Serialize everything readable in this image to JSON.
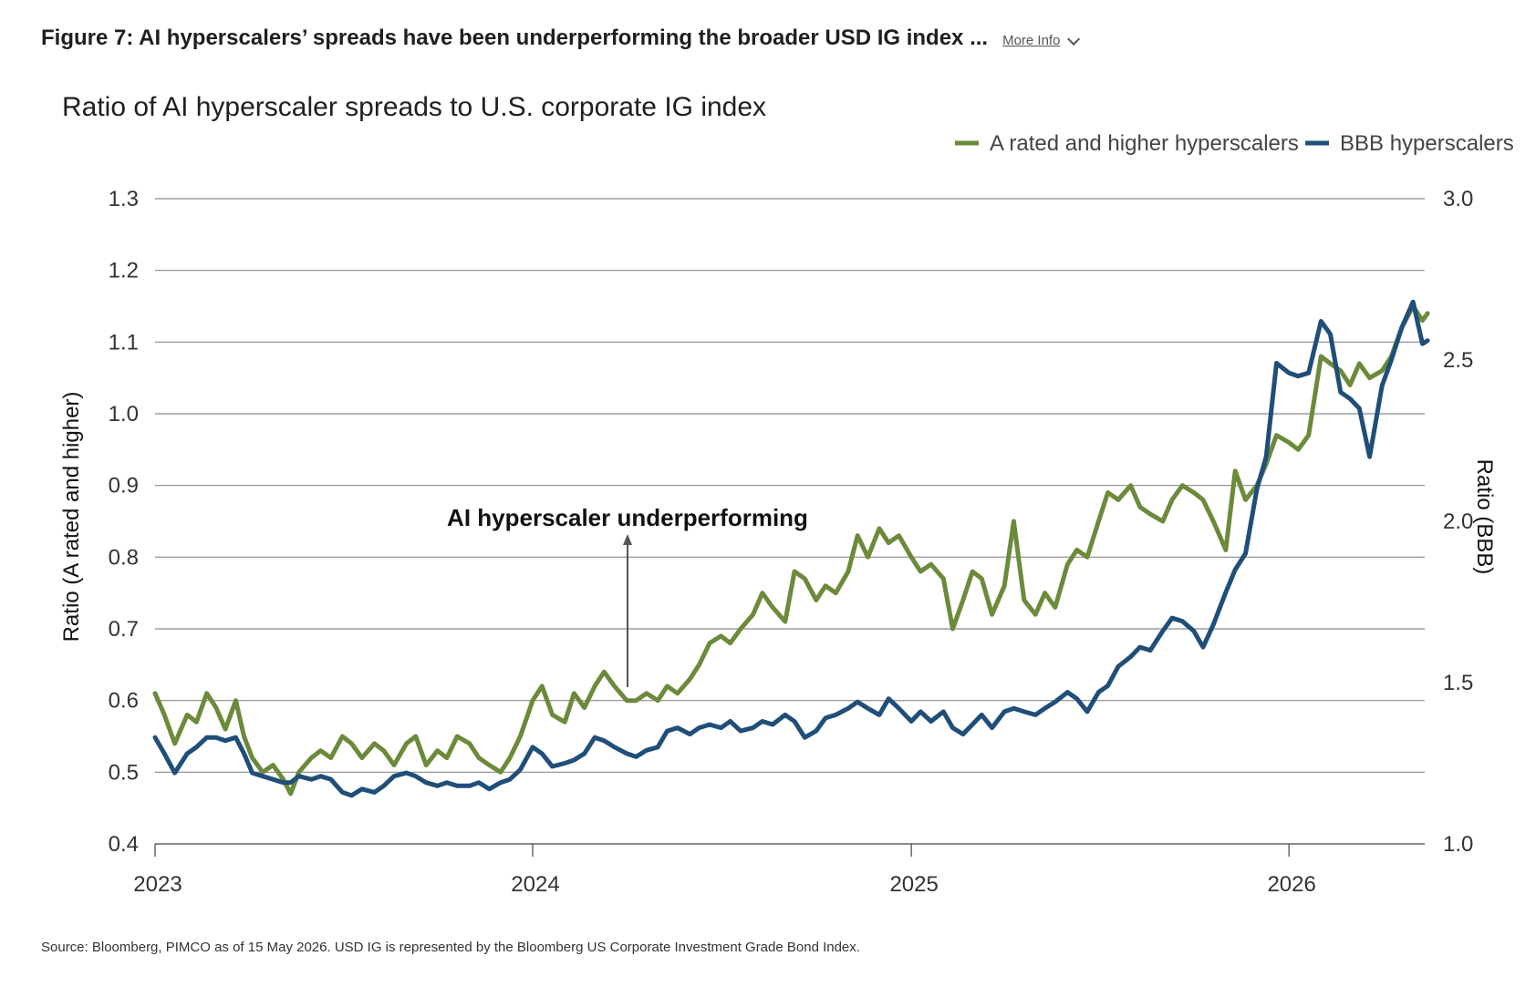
{
  "header": {
    "title": "Figure 7: AI hyperscalers’ spreads have been underperforming the broader USD IG index ...",
    "more_info_label": "More Info"
  },
  "source": "Source: Bloomberg, PIMCO as of 15 May 2026. USD IG is represented by the Bloomberg US Corporate Investment Grade Bond Index.",
  "chart_data": {
    "type": "line",
    "title": "Ratio of AI hyperscaler spreads to U.S. corporate IG index",
    "ylabel": "Ratio (A rated and higher)",
    "y2label": "Ratio (BBB)",
    "ylim": [
      0.4,
      1.3
    ],
    "y2lim": [
      1.0,
      3.0
    ],
    "xlim": [
      "2023-01-01",
      "2026-05-15"
    ],
    "yticks": [
      "1.3",
      "1.2",
      "1.1",
      "1.0",
      "0.9",
      "0.8",
      "0.7",
      "0.6",
      "0.5",
      "0.4"
    ],
    "y2ticks": [
      "3.0",
      "2.5",
      "2.0",
      "1.5",
      "1.0"
    ],
    "xticks": [
      "2023",
      "2024",
      "2025",
      "2026"
    ],
    "grid": "horizontal",
    "legend_position": "top-right",
    "annotation": "AI hyperscaler underperforming",
    "series": [
      {
        "name": "A rated and higher hyperscalers",
        "axis": "left",
        "color": "#6b8a3a",
        "points": [
          [
            "2023-01-01",
            0.61
          ],
          [
            "2023-01-10",
            0.58
          ],
          [
            "2023-01-20",
            0.54
          ],
          [
            "2023-02-01",
            0.58
          ],
          [
            "2023-02-10",
            0.57
          ],
          [
            "2023-02-20",
            0.61
          ],
          [
            "2023-03-01",
            0.59
          ],
          [
            "2023-03-10",
            0.56
          ],
          [
            "2023-03-20",
            0.6
          ],
          [
            "2023-03-28",
            0.55
          ],
          [
            "2023-04-05",
            0.52
          ],
          [
            "2023-04-15",
            0.5
          ],
          [
            "2023-04-25",
            0.51
          ],
          [
            "2023-05-05",
            0.49
          ],
          [
            "2023-05-12",
            0.47
          ],
          [
            "2023-05-20",
            0.5
          ],
          [
            "2023-06-01",
            0.52
          ],
          [
            "2023-06-10",
            0.53
          ],
          [
            "2023-06-20",
            0.52
          ],
          [
            "2023-07-01",
            0.55
          ],
          [
            "2023-07-10",
            0.54
          ],
          [
            "2023-07-20",
            0.52
          ],
          [
            "2023-08-01",
            0.54
          ],
          [
            "2023-08-10",
            0.53
          ],
          [
            "2023-08-20",
            0.51
          ],
          [
            "2023-09-01",
            0.54
          ],
          [
            "2023-09-10",
            0.55
          ],
          [
            "2023-09-20",
            0.51
          ],
          [
            "2023-10-01",
            0.53
          ],
          [
            "2023-10-10",
            0.52
          ],
          [
            "2023-10-20",
            0.55
          ],
          [
            "2023-11-01",
            0.54
          ],
          [
            "2023-11-10",
            0.52
          ],
          [
            "2023-11-20",
            0.51
          ],
          [
            "2023-12-01",
            0.5
          ],
          [
            "2023-12-10",
            0.52
          ],
          [
            "2023-12-20",
            0.55
          ],
          [
            "2024-01-01",
            0.6
          ],
          [
            "2024-01-10",
            0.62
          ],
          [
            "2024-01-20",
            0.58
          ],
          [
            "2024-02-01",
            0.57
          ],
          [
            "2024-02-10",
            0.61
          ],
          [
            "2024-02-20",
            0.59
          ],
          [
            "2024-03-01",
            0.62
          ],
          [
            "2024-03-10",
            0.64
          ],
          [
            "2024-03-20",
            0.62
          ],
          [
            "2024-04-01",
            0.6
          ],
          [
            "2024-04-10",
            0.6
          ],
          [
            "2024-04-20",
            0.61
          ],
          [
            "2024-05-01",
            0.6
          ],
          [
            "2024-05-10",
            0.62
          ],
          [
            "2024-05-20",
            0.61
          ],
          [
            "2024-06-01",
            0.63
          ],
          [
            "2024-06-10",
            0.65
          ],
          [
            "2024-06-20",
            0.68
          ],
          [
            "2024-07-01",
            0.69
          ],
          [
            "2024-07-10",
            0.68
          ],
          [
            "2024-07-20",
            0.7
          ],
          [
            "2024-08-01",
            0.72
          ],
          [
            "2024-08-10",
            0.75
          ],
          [
            "2024-08-20",
            0.73
          ],
          [
            "2024-09-01",
            0.71
          ],
          [
            "2024-09-10",
            0.78
          ],
          [
            "2024-09-20",
            0.77
          ],
          [
            "2024-10-01",
            0.74
          ],
          [
            "2024-10-10",
            0.76
          ],
          [
            "2024-10-20",
            0.75
          ],
          [
            "2024-11-01",
            0.78
          ],
          [
            "2024-11-10",
            0.83
          ],
          [
            "2024-11-20",
            0.8
          ],
          [
            "2024-12-01",
            0.84
          ],
          [
            "2024-12-10",
            0.82
          ],
          [
            "2024-12-20",
            0.83
          ],
          [
            "2025-01-01",
            0.8
          ],
          [
            "2025-01-10",
            0.78
          ],
          [
            "2025-01-20",
            0.79
          ],
          [
            "2025-02-01",
            0.77
          ],
          [
            "2025-02-10",
            0.7
          ],
          [
            "2025-02-20",
            0.74
          ],
          [
            "2025-03-01",
            0.78
          ],
          [
            "2025-03-10",
            0.77
          ],
          [
            "2025-03-20",
            0.72
          ],
          [
            "2025-04-01",
            0.76
          ],
          [
            "2025-04-10",
            0.85
          ],
          [
            "2025-04-20",
            0.74
          ],
          [
            "2025-05-01",
            0.72
          ],
          [
            "2025-05-10",
            0.75
          ],
          [
            "2025-05-20",
            0.73
          ],
          [
            "2025-06-01",
            0.79
          ],
          [
            "2025-06-10",
            0.81
          ],
          [
            "2025-06-20",
            0.8
          ],
          [
            "2025-07-01",
            0.85
          ],
          [
            "2025-07-10",
            0.89
          ],
          [
            "2025-07-20",
            0.88
          ],
          [
            "2025-08-01",
            0.9
          ],
          [
            "2025-08-10",
            0.87
          ],
          [
            "2025-08-20",
            0.86
          ],
          [
            "2025-09-01",
            0.85
          ],
          [
            "2025-09-10",
            0.88
          ],
          [
            "2025-09-20",
            0.9
          ],
          [
            "2025-10-01",
            0.89
          ],
          [
            "2025-10-10",
            0.88
          ],
          [
            "2025-10-20",
            0.85
          ],
          [
            "2025-11-01",
            0.81
          ],
          [
            "2025-11-10",
            0.92
          ],
          [
            "2025-11-20",
            0.88
          ],
          [
            "2025-12-01",
            0.9
          ],
          [
            "2025-12-10",
            0.93
          ],
          [
            "2025-12-20",
            0.97
          ],
          [
            "2026-01-01",
            0.96
          ],
          [
            "2026-01-10",
            0.95
          ],
          [
            "2026-01-20",
            0.97
          ],
          [
            "2026-02-01",
            1.08
          ],
          [
            "2026-02-10",
            1.07
          ],
          [
            "2026-02-20",
            1.06
          ],
          [
            "2026-03-01",
            1.04
          ],
          [
            "2026-03-10",
            1.07
          ],
          [
            "2026-03-20",
            1.05
          ],
          [
            "2026-04-01",
            1.06
          ],
          [
            "2026-04-10",
            1.08
          ],
          [
            "2026-04-20",
            1.12
          ],
          [
            "2026-05-01",
            1.15
          ],
          [
            "2026-05-10",
            1.13
          ],
          [
            "2026-05-15",
            1.14
          ]
        ]
      },
      {
        "name": "BBB hyperscalers",
        "axis": "right",
        "color": "#1f4e79",
        "points": [
          [
            "2023-01-01",
            1.33
          ],
          [
            "2023-01-10",
            1.28
          ],
          [
            "2023-01-20",
            1.22
          ],
          [
            "2023-02-01",
            1.28
          ],
          [
            "2023-02-10",
            1.3
          ],
          [
            "2023-02-20",
            1.33
          ],
          [
            "2023-03-01",
            1.33
          ],
          [
            "2023-03-10",
            1.32
          ],
          [
            "2023-03-20",
            1.33
          ],
          [
            "2023-03-28",
            1.28
          ],
          [
            "2023-04-05",
            1.22
          ],
          [
            "2023-04-15",
            1.21
          ],
          [
            "2023-04-25",
            1.2
          ],
          [
            "2023-05-05",
            1.19
          ],
          [
            "2023-05-12",
            1.19
          ],
          [
            "2023-05-20",
            1.21
          ],
          [
            "2023-06-01",
            1.2
          ],
          [
            "2023-06-10",
            1.21
          ],
          [
            "2023-06-20",
            1.2
          ],
          [
            "2023-07-01",
            1.16
          ],
          [
            "2023-07-10",
            1.15
          ],
          [
            "2023-07-20",
            1.17
          ],
          [
            "2023-08-01",
            1.16
          ],
          [
            "2023-08-10",
            1.18
          ],
          [
            "2023-08-20",
            1.21
          ],
          [
            "2023-09-01",
            1.22
          ],
          [
            "2023-09-10",
            1.21
          ],
          [
            "2023-09-20",
            1.19
          ],
          [
            "2023-10-01",
            1.18
          ],
          [
            "2023-10-10",
            1.19
          ],
          [
            "2023-10-20",
            1.18
          ],
          [
            "2023-11-01",
            1.18
          ],
          [
            "2023-11-10",
            1.19
          ],
          [
            "2023-11-20",
            1.17
          ],
          [
            "2023-12-01",
            1.19
          ],
          [
            "2023-12-10",
            1.2
          ],
          [
            "2023-12-20",
            1.23
          ],
          [
            "2024-01-01",
            1.3
          ],
          [
            "2024-01-10",
            1.28
          ],
          [
            "2024-01-20",
            1.24
          ],
          [
            "2024-02-01",
            1.25
          ],
          [
            "2024-02-10",
            1.26
          ],
          [
            "2024-02-20",
            1.28
          ],
          [
            "2024-03-01",
            1.33
          ],
          [
            "2024-03-10",
            1.32
          ],
          [
            "2024-03-20",
            1.3
          ],
          [
            "2024-04-01",
            1.28
          ],
          [
            "2024-04-10",
            1.27
          ],
          [
            "2024-04-20",
            1.29
          ],
          [
            "2024-05-01",
            1.3
          ],
          [
            "2024-05-10",
            1.35
          ],
          [
            "2024-05-20",
            1.36
          ],
          [
            "2024-06-01",
            1.34
          ],
          [
            "2024-06-10",
            1.36
          ],
          [
            "2024-06-20",
            1.37
          ],
          [
            "2024-07-01",
            1.36
          ],
          [
            "2024-07-10",
            1.38
          ],
          [
            "2024-07-20",
            1.35
          ],
          [
            "2024-08-01",
            1.36
          ],
          [
            "2024-08-10",
            1.38
          ],
          [
            "2024-08-20",
            1.37
          ],
          [
            "2024-09-01",
            1.4
          ],
          [
            "2024-09-10",
            1.38
          ],
          [
            "2024-09-20",
            1.33
          ],
          [
            "2024-10-01",
            1.35
          ],
          [
            "2024-10-10",
            1.39
          ],
          [
            "2024-10-20",
            1.4
          ],
          [
            "2024-11-01",
            1.42
          ],
          [
            "2024-11-10",
            1.44
          ],
          [
            "2024-11-20",
            1.42
          ],
          [
            "2024-12-01",
            1.4
          ],
          [
            "2024-12-10",
            1.45
          ],
          [
            "2024-12-20",
            1.42
          ],
          [
            "2025-01-01",
            1.38
          ],
          [
            "2025-01-10",
            1.41
          ],
          [
            "2025-01-20",
            1.38
          ],
          [
            "2025-02-01",
            1.41
          ],
          [
            "2025-02-10",
            1.36
          ],
          [
            "2025-02-20",
            1.34
          ],
          [
            "2025-03-01",
            1.37
          ],
          [
            "2025-03-10",
            1.4
          ],
          [
            "2025-03-20",
            1.36
          ],
          [
            "2025-04-01",
            1.41
          ],
          [
            "2025-04-10",
            1.42
          ],
          [
            "2025-04-20",
            1.41
          ],
          [
            "2025-05-01",
            1.4
          ],
          [
            "2025-05-10",
            1.42
          ],
          [
            "2025-05-20",
            1.44
          ],
          [
            "2025-06-01",
            1.47
          ],
          [
            "2025-06-10",
            1.45
          ],
          [
            "2025-06-20",
            1.41
          ],
          [
            "2025-07-01",
            1.47
          ],
          [
            "2025-07-10",
            1.49
          ],
          [
            "2025-07-20",
            1.55
          ],
          [
            "2025-08-01",
            1.58
          ],
          [
            "2025-08-10",
            1.61
          ],
          [
            "2025-08-20",
            1.6
          ],
          [
            "2025-09-01",
            1.66
          ],
          [
            "2025-09-10",
            1.7
          ],
          [
            "2025-09-20",
            1.69
          ],
          [
            "2025-10-01",
            1.66
          ],
          [
            "2025-10-10",
            1.61
          ],
          [
            "2025-10-20",
            1.68
          ],
          [
            "2025-11-01",
            1.78
          ],
          [
            "2025-11-10",
            1.85
          ],
          [
            "2025-11-20",
            1.9
          ],
          [
            "2025-12-01",
            2.1
          ],
          [
            "2025-12-10",
            2.2
          ],
          [
            "2025-12-20",
            2.49
          ],
          [
            "2026-01-01",
            2.46
          ],
          [
            "2026-01-10",
            2.45
          ],
          [
            "2026-01-20",
            2.46
          ],
          [
            "2026-02-01",
            2.62
          ],
          [
            "2026-02-10",
            2.58
          ],
          [
            "2026-02-20",
            2.4
          ],
          [
            "2026-03-01",
            2.38
          ],
          [
            "2026-03-10",
            2.35
          ],
          [
            "2026-03-20",
            2.2
          ],
          [
            "2026-04-01",
            2.42
          ],
          [
            "2026-04-10",
            2.5
          ],
          [
            "2026-04-20",
            2.6
          ],
          [
            "2026-05-01",
            2.68
          ],
          [
            "2026-05-10",
            2.55
          ],
          [
            "2026-05-15",
            2.56
          ]
        ]
      }
    ]
  }
}
